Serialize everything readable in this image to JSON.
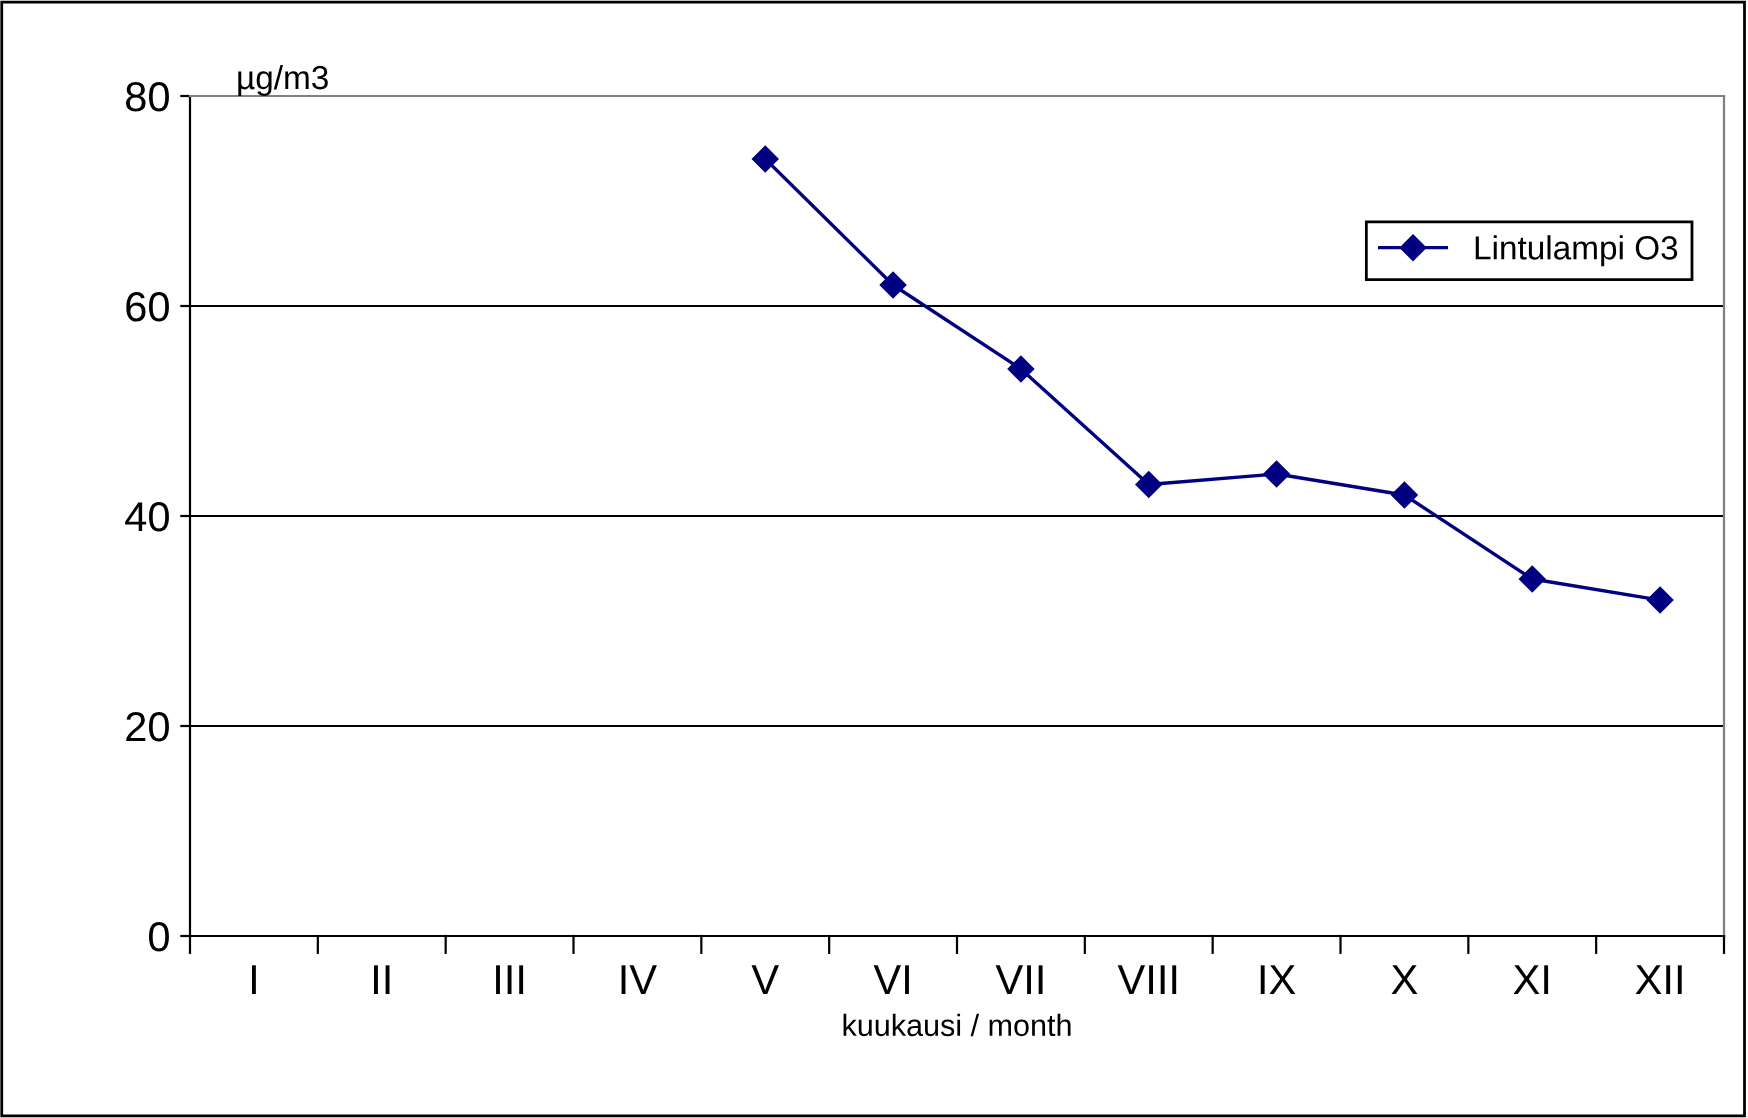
{
  "chart_data": {
    "type": "line",
    "ylabel": "µg/m3",
    "xlabel": "kuukausi / month",
    "categories": [
      "I",
      "II",
      "III",
      "IV",
      "V",
      "VI",
      "VII",
      "VIII",
      "IX",
      "X",
      "XI",
      "XII"
    ],
    "series": [
      {
        "name": "Lintulampi O3",
        "color": "#000080",
        "values": [
          null,
          null,
          null,
          null,
          74,
          62,
          54,
          43,
          44,
          42,
          34,
          32
        ]
      }
    ],
    "ylim": [
      0,
      80
    ],
    "yticks": [
      0,
      20,
      40,
      60,
      80
    ],
    "grid": "y",
    "legend": "top right",
    "marker": "diamond",
    "line_style": "solid"
  }
}
